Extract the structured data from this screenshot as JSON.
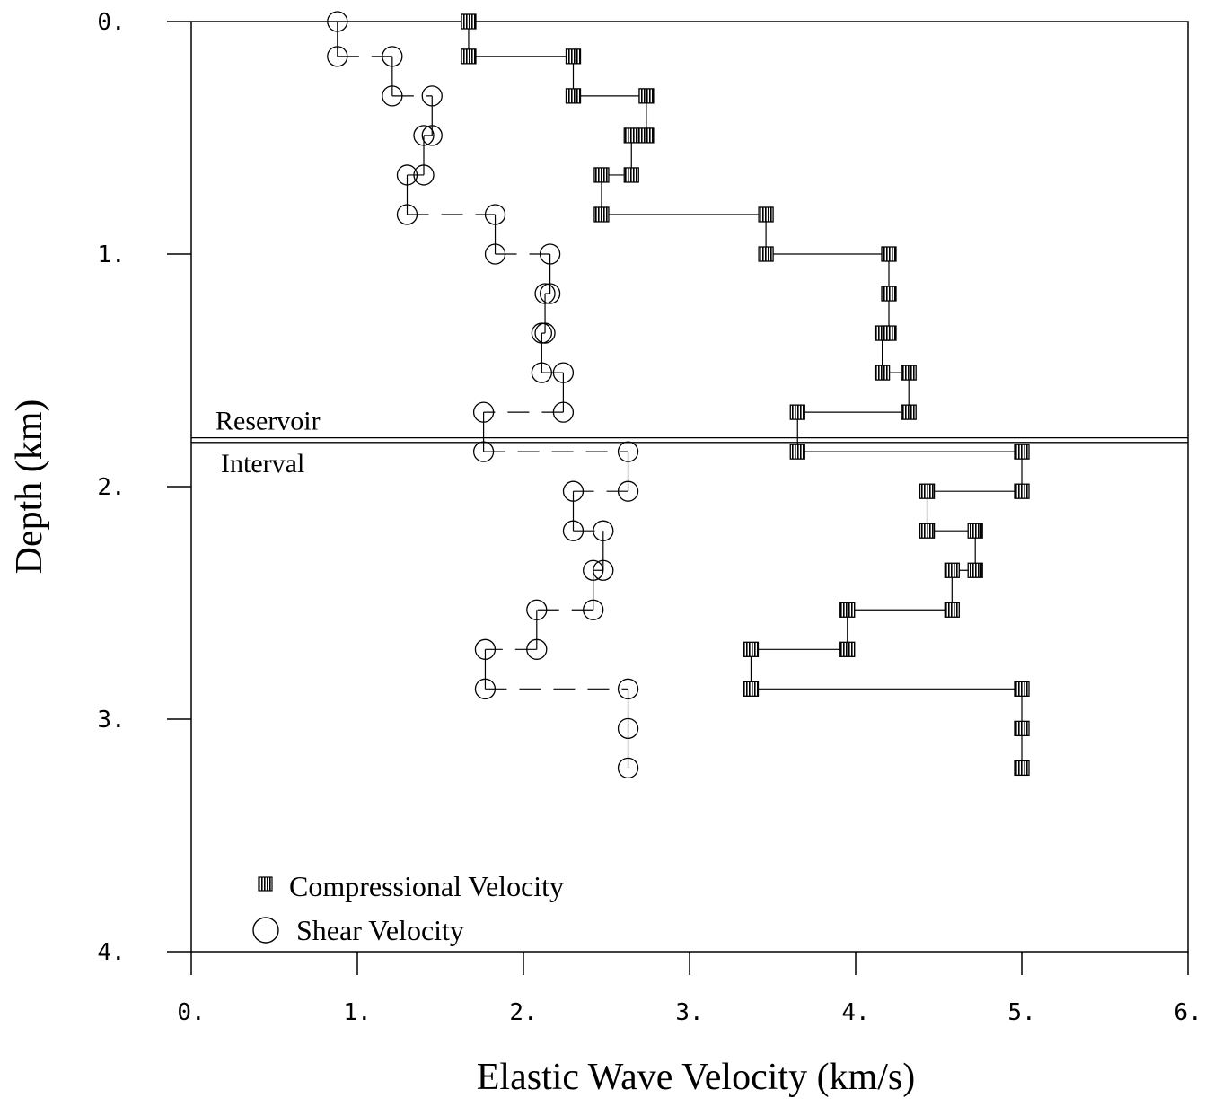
{
  "chart_data": {
    "type": "scatter",
    "title": "",
    "xlabel": "Elastic Wave Velocity (km/s)",
    "ylabel": "Depth (km)",
    "xlim": [
      0,
      6
    ],
    "ylim": [
      0,
      4
    ],
    "y_inverted": true,
    "x_ticks": [
      0,
      1,
      2,
      3,
      4,
      5,
      6
    ],
    "x_tick_labels": [
      "0.",
      "1.",
      "2.",
      "3.",
      "4.",
      "5.",
      "6."
    ],
    "y_ticks": [
      0,
      1,
      2,
      3,
      4
    ],
    "y_tick_labels": [
      "0.",
      "1.",
      "2.",
      "3.",
      "4."
    ],
    "grid": false,
    "legend_position": "bottom-left",
    "series": [
      {
        "name": "Compressional Velocity",
        "marker": "hatched-square",
        "connector": "solid-step",
        "points": [
          [
            1.67,
            0.0
          ],
          [
            1.67,
            0.15
          ],
          [
            2.3,
            0.15
          ],
          [
            2.3,
            0.32
          ],
          [
            2.74,
            0.32
          ],
          [
            2.74,
            0.49
          ],
          [
            2.65,
            0.49
          ],
          [
            2.65,
            0.66
          ],
          [
            2.47,
            0.66
          ],
          [
            2.47,
            0.83
          ],
          [
            3.46,
            0.83
          ],
          [
            3.46,
            1.0
          ],
          [
            4.2,
            1.0
          ],
          [
            4.2,
            1.17
          ],
          [
            4.2,
            1.34
          ],
          [
            4.16,
            1.34
          ],
          [
            4.16,
            1.51
          ],
          [
            4.32,
            1.51
          ],
          [
            4.32,
            1.68
          ],
          [
            3.65,
            1.68
          ],
          [
            3.65,
            1.85
          ],
          [
            5.0,
            1.85
          ],
          [
            5.0,
            2.02
          ],
          [
            4.43,
            2.02
          ],
          [
            4.43,
            2.19
          ],
          [
            4.72,
            2.19
          ],
          [
            4.72,
            2.36
          ],
          [
            4.58,
            2.36
          ],
          [
            4.58,
            2.53
          ],
          [
            3.95,
            2.53
          ],
          [
            3.95,
            2.7
          ],
          [
            3.37,
            2.7
          ],
          [
            3.37,
            2.87
          ],
          [
            5.0,
            2.87
          ],
          [
            5.0,
            3.04
          ],
          [
            5.0,
            3.21
          ]
        ]
      },
      {
        "name": "Shear Velocity",
        "marker": "open-circle",
        "connector": "dashed-step",
        "points": [
          [
            0.88,
            0.0
          ],
          [
            0.88,
            0.15
          ],
          [
            1.21,
            0.15
          ],
          [
            1.21,
            0.32
          ],
          [
            1.45,
            0.32
          ],
          [
            1.45,
            0.49
          ],
          [
            1.4,
            0.49
          ],
          [
            1.4,
            0.66
          ],
          [
            1.3,
            0.66
          ],
          [
            1.3,
            0.83
          ],
          [
            1.83,
            0.83
          ],
          [
            1.83,
            1.0
          ],
          [
            2.16,
            1.0
          ],
          [
            2.16,
            1.17
          ],
          [
            2.13,
            1.17
          ],
          [
            2.13,
            1.34
          ],
          [
            2.11,
            1.34
          ],
          [
            2.11,
            1.51
          ],
          [
            2.24,
            1.51
          ],
          [
            2.24,
            1.68
          ],
          [
            1.76,
            1.68
          ],
          [
            1.76,
            1.85
          ],
          [
            2.63,
            1.85
          ],
          [
            2.63,
            2.02
          ],
          [
            2.3,
            2.02
          ],
          [
            2.3,
            2.19
          ],
          [
            2.48,
            2.19
          ],
          [
            2.48,
            2.36
          ],
          [
            2.42,
            2.36
          ],
          [
            2.42,
            2.53
          ],
          [
            2.08,
            2.53
          ],
          [
            2.08,
            2.7
          ],
          [
            1.77,
            2.7
          ],
          [
            1.77,
            2.87
          ],
          [
            2.63,
            2.87
          ],
          [
            2.63,
            3.04
          ],
          [
            2.63,
            3.21
          ]
        ]
      }
    ],
    "annotations": {
      "boundary_depths": [
        1.79,
        1.81
      ],
      "above_label": "Reservoir",
      "below_label": "Interval"
    }
  }
}
